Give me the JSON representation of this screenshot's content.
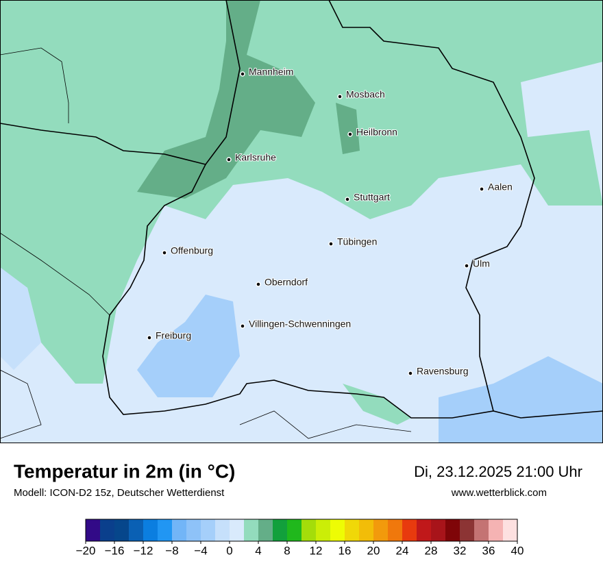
{
  "header": {
    "title": "Temperatur in 2m (in °C)",
    "subtitle": "Modell: ICON-D2 15z, Deutscher Wetterdienst",
    "datetime": "Di, 23.12.2025 21:00 Uhr",
    "website": "www.wetterblick.com"
  },
  "cities": [
    "Mannheim",
    "Mosbach",
    "Heilbronn",
    "Karlsruhe",
    "Stuttgart",
    "Aalen",
    "Tübingen",
    "Offenburg",
    "Ulm",
    "Oberndorf",
    "Villingen-Schwenningen",
    "Freiburg",
    "Ravensburg"
  ],
  "colorbar": {
    "range": [
      -20,
      40
    ],
    "colors": [
      "#320a87",
      "#0a3f8c",
      "#06468b",
      "#0a60b4",
      "#0b7ee0",
      "#2196f3",
      "#72b5f7",
      "#8ec2f8",
      "#a5cffa",
      "#c6e0fb",
      "#d9eafc",
      "#93dcbd",
      "#64ae88",
      "#12a03c",
      "#20b81c",
      "#a4dd0a",
      "#cbee07",
      "#eefc04",
      "#f0d808",
      "#f2bd08",
      "#f29a0c",
      "#f0780c",
      "#e83a0e",
      "#c0181a",
      "#a8141a",
      "#7f0508",
      "#8c3434",
      "#c47373",
      "#f5b3b3",
      "#fde0e0"
    ],
    "ticks": [
      {
        "value": -20,
        "label": "−20"
      },
      {
        "value": -16,
        "label": "−16"
      },
      {
        "value": -12,
        "label": "−12"
      },
      {
        "value": -8,
        "label": "−8"
      },
      {
        "value": -4,
        "label": "−4"
      },
      0,
      4,
      8,
      12,
      16,
      20,
      24,
      28,
      32,
      36,
      40
    ]
  }
}
